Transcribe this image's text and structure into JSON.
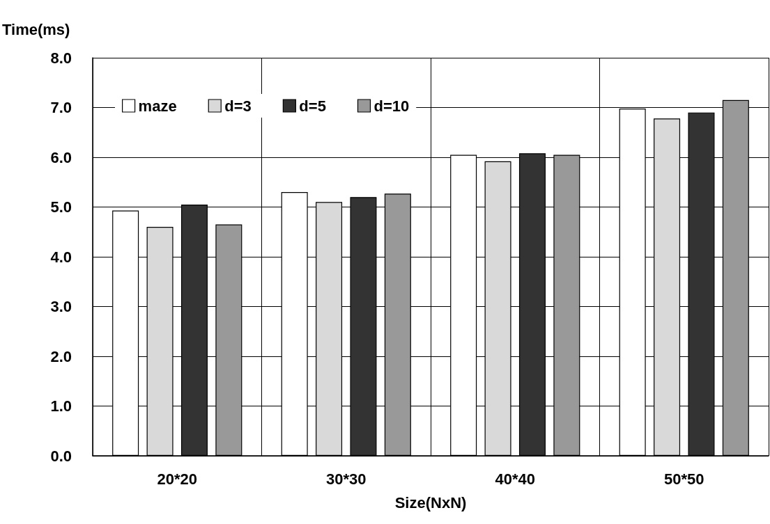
{
  "chart_data": {
    "type": "bar",
    "ylabel": "Time(ms)",
    "xlabel": "Size(NxN)",
    "categories": [
      "20*20",
      "30*30",
      "40*40",
      "50*50"
    ],
    "series": [
      {
        "name": "maze",
        "color": "#ffffff",
        "values": [
          4.93,
          5.3,
          6.05,
          6.98
        ]
      },
      {
        "name": "d=3",
        "color": "#d9d9d9",
        "values": [
          4.6,
          5.1,
          5.92,
          6.78
        ]
      },
      {
        "name": "d=5",
        "color": "#333333",
        "values": [
          5.05,
          5.2,
          6.08,
          6.9
        ]
      },
      {
        "name": "d=10",
        "color": "#999999",
        "values": [
          4.65,
          5.27,
          6.05,
          7.15
        ]
      }
    ],
    "ylim": [
      0,
      8
    ],
    "yticks": [
      {
        "value": 0,
        "label": "0.0"
      },
      {
        "value": 1,
        "label": "1.0"
      },
      {
        "value": 2,
        "label": "2.0"
      },
      {
        "value": 3,
        "label": "3.0"
      },
      {
        "value": 4,
        "label": "4.0"
      },
      {
        "value": 5,
        "label": "5.0"
      },
      {
        "value": 6,
        "label": "6.0"
      },
      {
        "value": 7,
        "label": "7.0"
      },
      {
        "value": 8,
        "label": "8.0"
      }
    ],
    "grid": true,
    "legend": "top left"
  }
}
